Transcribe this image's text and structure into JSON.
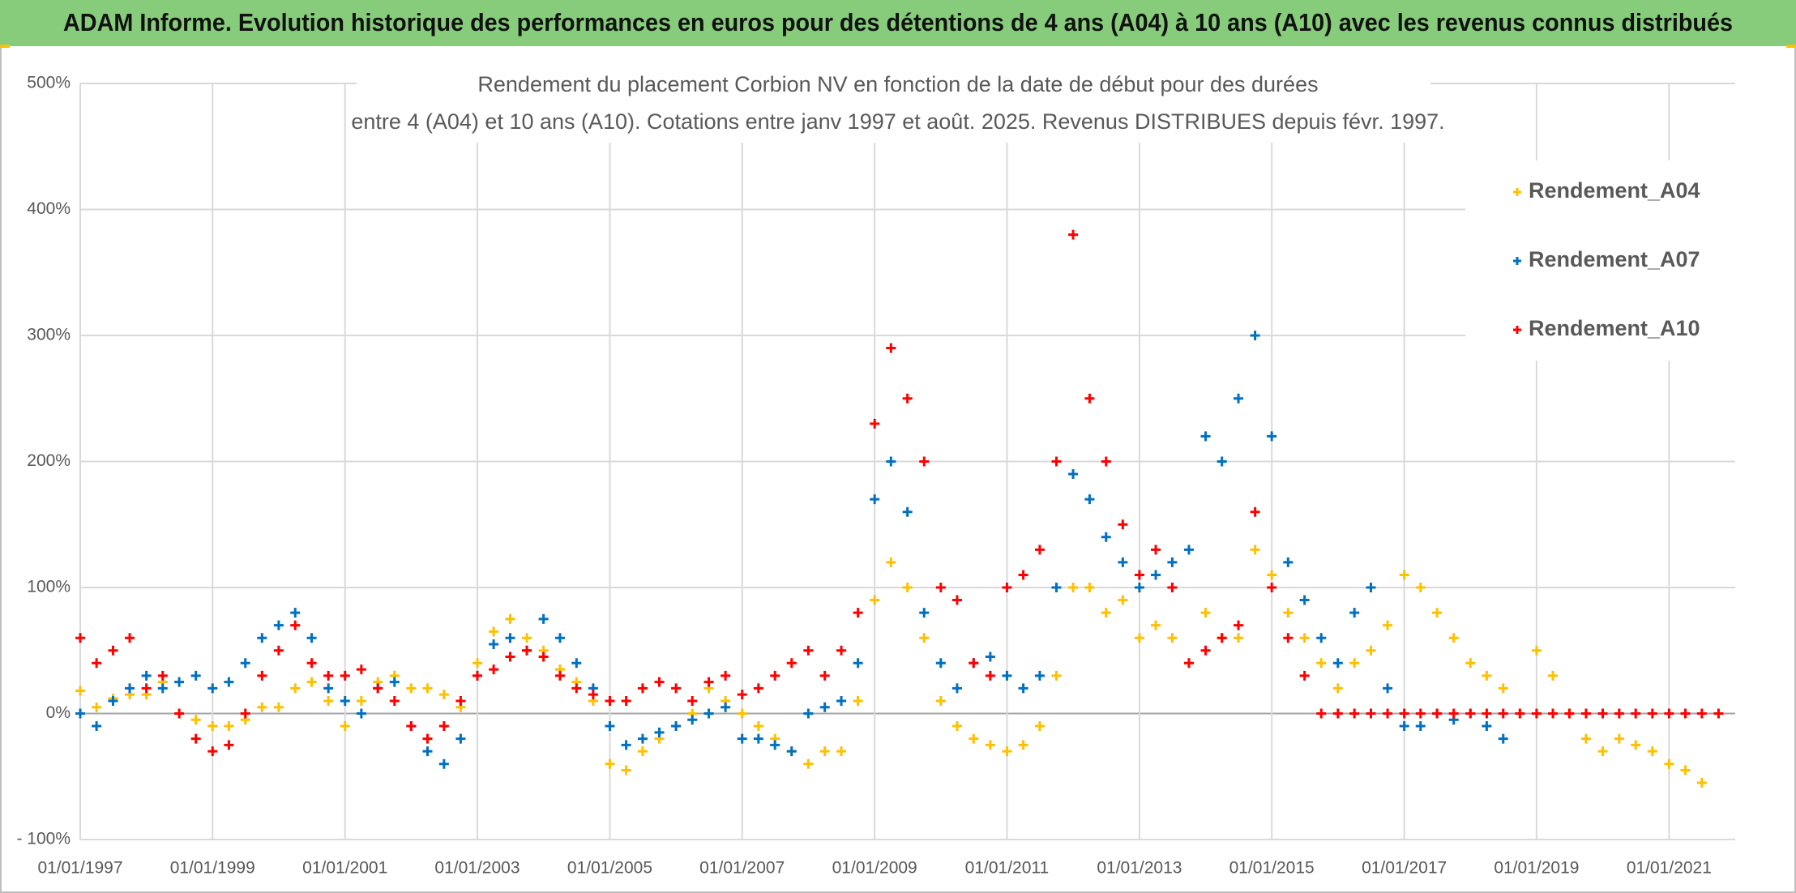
{
  "header": {
    "title": "ADAM Informe. Evolution historique des performances en euros pour des détentions de 4 ans (A04) à 10 ans (A10) avec les revenus connus distribués"
  },
  "chart_data": {
    "type": "scatter",
    "title": [
      "Rendement du placement Corbion NV en fonction de la date de début pour des durées",
      "entre 4 (A04) et 10 ans (A10). Cotations entre janv 1997 et août. 2025. Revenus DISTRIBUES depuis févr. 1997."
    ],
    "x": [
      "1997-01-01",
      "1997-04-01",
      "1997-07-01",
      "1997-10-01",
      "1998-01-01",
      "1998-04-01",
      "1998-07-01",
      "1998-10-01",
      "1999-01-01",
      "1999-04-01",
      "1999-07-01",
      "1999-10-01",
      "2000-01-01",
      "2000-04-01",
      "2000-07-01",
      "2000-10-01",
      "2001-01-01",
      "2001-04-01",
      "2001-07-01",
      "2001-10-01",
      "2002-01-01",
      "2002-04-01",
      "2002-07-01",
      "2002-10-01",
      "2003-01-01",
      "2003-04-01",
      "2003-07-01",
      "2003-10-01",
      "2004-01-01",
      "2004-04-01",
      "2004-07-01",
      "2004-10-01",
      "2005-01-01",
      "2005-04-01",
      "2005-07-01",
      "2005-10-01",
      "2006-01-01",
      "2006-04-01",
      "2006-07-01",
      "2006-10-01",
      "2007-01-01",
      "2007-04-01",
      "2007-07-01",
      "2007-10-01",
      "2008-01-01",
      "2008-04-01",
      "2008-07-01",
      "2008-10-01",
      "2009-01-01",
      "2009-04-01",
      "2009-07-01",
      "2009-10-01",
      "2010-01-01",
      "2010-04-01",
      "2010-07-01",
      "2010-10-01",
      "2011-01-01",
      "2011-04-01",
      "2011-07-01",
      "2011-10-01",
      "2012-01-01",
      "2012-04-01",
      "2012-07-01",
      "2012-10-01",
      "2013-01-01",
      "2013-04-01",
      "2013-07-01",
      "2013-10-01",
      "2014-01-01",
      "2014-04-01",
      "2014-07-01",
      "2014-10-01",
      "2015-01-01",
      "2015-04-01",
      "2015-07-01",
      "2015-10-01",
      "2016-01-01",
      "2016-04-01",
      "2016-07-01",
      "2016-10-01",
      "2017-01-01",
      "2017-04-01",
      "2017-07-01",
      "2017-10-01",
      "2018-01-01",
      "2018-04-01",
      "2018-07-01",
      "2018-10-01",
      "2019-01-01",
      "2019-04-01",
      "2019-07-01",
      "2019-10-01",
      "2020-01-01",
      "2020-04-01",
      "2020-07-01",
      "2020-10-01",
      "2021-01-01",
      "2021-04-01",
      "2021-07-01",
      "2021-10-01"
    ],
    "series": [
      {
        "name": "Rendement_A04",
        "color": "#ffc000",
        "values": [
          18,
          5,
          12,
          15,
          15,
          25,
          0,
          -5,
          -10,
          -10,
          -5,
          5,
          5,
          20,
          25,
          10,
          -10,
          10,
          25,
          30,
          20,
          20,
          15,
          5,
          40,
          65,
          75,
          60,
          50,
          35,
          25,
          10,
          -40,
          -45,
          -30,
          -20,
          -10,
          0,
          20,
          10,
          0,
          -10,
          -20,
          -30,
          -40,
          -30,
          -30,
          10,
          90,
          120,
          100,
          60,
          10,
          -10,
          -20,
          -25,
          -30,
          -25,
          -10,
          30,
          100,
          100,
          80,
          90,
          60,
          70,
          60,
          40,
          80,
          60,
          60,
          130,
          110,
          80,
          60,
          40,
          20,
          40,
          50,
          70,
          110,
          100,
          80,
          60,
          40,
          30,
          20,
          0,
          50,
          30,
          0,
          -20,
          -30,
          -20,
          -25,
          -30,
          -40,
          -45,
          -55,
          null
        ]
      },
      {
        "name": "Rendement_A07",
        "color": "#0070c0",
        "values": [
          0,
          -10,
          10,
          20,
          30,
          20,
          25,
          30,
          20,
          25,
          40,
          60,
          70,
          80,
          60,
          20,
          10,
          0,
          20,
          25,
          -10,
          -30,
          -40,
          -20,
          30,
          55,
          60,
          50,
          75,
          60,
          40,
          20,
          -10,
          -25,
          -20,
          -15,
          -10,
          -5,
          0,
          5,
          -20,
          -20,
          -25,
          -30,
          0,
          5,
          10,
          40,
          170,
          200,
          160,
          80,
          40,
          20,
          40,
          45,
          30,
          20,
          30,
          100,
          190,
          170,
          140,
          120,
          100,
          110,
          120,
          130,
          220,
          200,
          250,
          300,
          220,
          120,
          90,
          60,
          40,
          80,
          100,
          20,
          -10,
          -10,
          0,
          -5,
          0,
          -10,
          -20,
          null,
          null,
          null,
          null,
          null,
          null,
          null,
          null,
          null,
          null,
          null,
          null,
          null
        ]
      },
      {
        "name": "Rendement_A10",
        "color": "#ff0000",
        "values": [
          60,
          40,
          50,
          60,
          20,
          30,
          0,
          -20,
          -30,
          -25,
          0,
          30,
          50,
          70,
          40,
          30,
          30,
          35,
          20,
          10,
          -10,
          -20,
          -10,
          10,
          30,
          35,
          45,
          50,
          45,
          30,
          20,
          15,
          10,
          10,
          20,
          25,
          20,
          10,
          25,
          30,
          15,
          20,
          30,
          40,
          50,
          30,
          50,
          80,
          230,
          290,
          250,
          200,
          100,
          90,
          40,
          30,
          100,
          110,
          130,
          200,
          380,
          250,
          200,
          150,
          110,
          130,
          100,
          40,
          50,
          60,
          70,
          160,
          100,
          60,
          30,
          0,
          0,
          0,
          0,
          0,
          0,
          0,
          0,
          0,
          0,
          0,
          0,
          0,
          0,
          0,
          0,
          0,
          0,
          0,
          0,
          0,
          0,
          0,
          0,
          0
        ]
      }
    ],
    "xlim": [
      "1997-01-01",
      "2022-01-01"
    ],
    "xticks": [
      {
        "value": "1997-01-01",
        "label": "01/01/1997"
      },
      {
        "value": "1999-01-01",
        "label": "01/01/1999"
      },
      {
        "value": "2001-01-01",
        "label": "01/01/2001"
      },
      {
        "value": "2003-01-01",
        "label": "01/01/2003"
      },
      {
        "value": "2005-01-01",
        "label": "01/01/2005"
      },
      {
        "value": "2007-01-01",
        "label": "01/01/2007"
      },
      {
        "value": "2009-01-01",
        "label": "01/01/2009"
      },
      {
        "value": "2011-01-01",
        "label": "01/01/2011"
      },
      {
        "value": "2013-01-01",
        "label": "01/01/2013"
      },
      {
        "value": "2015-01-01",
        "label": "01/01/2015"
      },
      {
        "value": "2017-01-01",
        "label": "01/01/2017"
      },
      {
        "value": "2019-01-01",
        "label": "01/01/2019"
      },
      {
        "value": "2021-01-01",
        "label": "01/01/2021"
      }
    ],
    "ylim": [
      -100,
      500
    ],
    "yticks": [
      {
        "value": -100,
        "label": "- 100%"
      },
      {
        "value": 0,
        "label": "0%"
      },
      {
        "value": 100,
        "label": "100%"
      },
      {
        "value": 200,
        "label": "200%"
      },
      {
        "value": 300,
        "label": "300%"
      },
      {
        "value": 400,
        "label": "400%"
      },
      {
        "value": 500,
        "label": "500%"
      }
    ],
    "grid": true,
    "legend": "upper right"
  }
}
